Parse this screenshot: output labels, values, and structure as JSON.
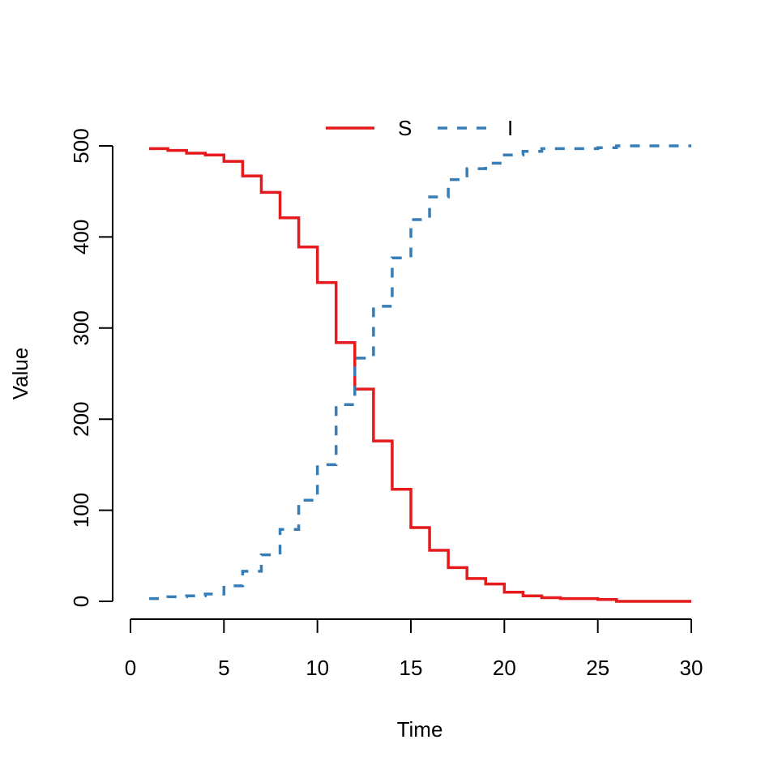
{
  "chart_data": {
    "type": "line",
    "step": true,
    "title": "",
    "xlabel": "Time",
    "ylabel": "Value",
    "xlim": [
      0,
      30
    ],
    "ylim": [
      0,
      500
    ],
    "xticks": [
      "0",
      "5",
      "10",
      "15",
      "20",
      "25",
      "30"
    ],
    "yticks": [
      "0",
      "100",
      "200",
      "300",
      "400",
      "500"
    ],
    "legend": {
      "placement": "top",
      "entries": [
        "S",
        "I"
      ]
    },
    "x": [
      1,
      2,
      3,
      4,
      5,
      6,
      7,
      8,
      9,
      10,
      11,
      12,
      13,
      14,
      15,
      16,
      17,
      18,
      19,
      20,
      21,
      22,
      23,
      24,
      25,
      26,
      27,
      28,
      29,
      30
    ],
    "series": [
      {
        "name": "S",
        "color": "#e41a1c",
        "line_style": "solid",
        "values": [
          497,
          495,
          492,
          490,
          483,
          467,
          449,
          421,
          389,
          350,
          284,
          233,
          176,
          123,
          81,
          56,
          37,
          25,
          19,
          10,
          6,
          4,
          3,
          3,
          2,
          0,
          0,
          0,
          0,
          0
        ]
      },
      {
        "name": "I",
        "color": "#377eb8",
        "line_style": "dashed",
        "values": [
          3,
          5,
          6,
          8,
          17,
          33,
          51,
          79,
          111,
          150,
          216,
          267,
          324,
          377,
          419,
          444,
          463,
          475,
          481,
          490,
          494,
          497,
          497,
          497,
          498,
          500,
          500,
          500,
          500,
          500
        ]
      }
    ]
  }
}
